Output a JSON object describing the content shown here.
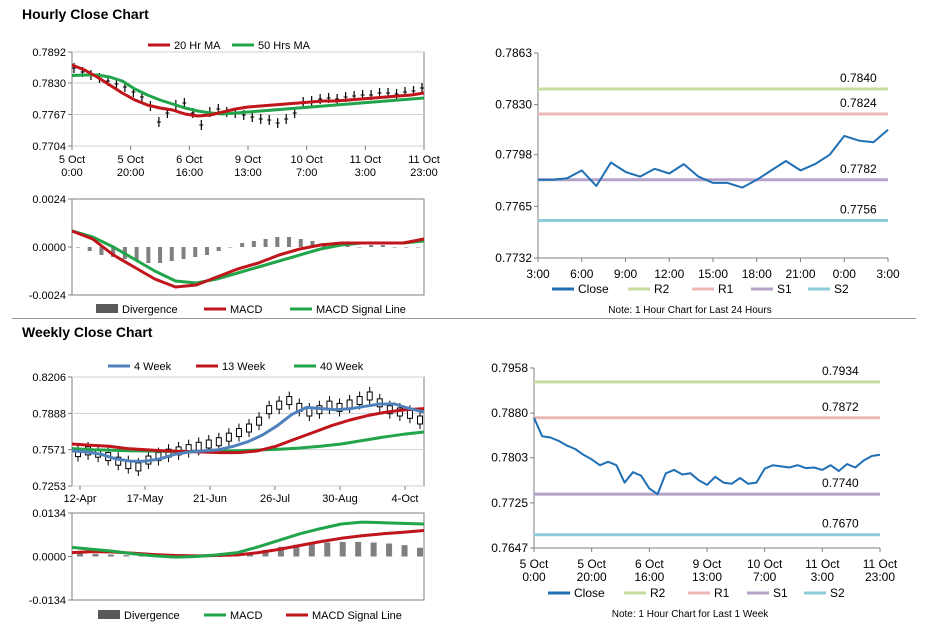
{
  "hourly_title": "Hourly Close Chart",
  "weekly_title": "Weekly Close Chart",
  "colors": {
    "ma20": "#c0151b",
    "ma50": "#22a44a",
    "price": "#000000",
    "divergence": "#7f7f7f",
    "close": "#1f6fb4",
    "r2": "#c6dca0",
    "r1": "#ebb8b6",
    "s1": "#b4a3c8",
    "s2": "#8ccbd8",
    "wk4": "#4f81bd",
    "wk13": "#c0151b",
    "wk40": "#22a44a"
  },
  "chart_data": [
    {
      "id": "hourly-price",
      "type": "line",
      "legend": [
        "20 Hr MA",
        "50 Hrs MA"
      ],
      "x_tick_labels": [
        "5 Oct\n0:00",
        "5 Oct\n20:00",
        "6 Oct\n16:00",
        "9 Oct\n13:00",
        "10 Oct\n7:00",
        "11 Oct\n3:00",
        "11 Oct\n23:00"
      ],
      "y_tick_labels": [
        "0.7892",
        "0.7830",
        "0.7767",
        "0.7704"
      ],
      "ylim": [
        0.7704,
        0.7892
      ],
      "series": [
        {
          "name": "Price",
          "style": "bars",
          "values": [
            0.786,
            0.7852,
            0.7846,
            0.784,
            0.7834,
            0.7828,
            0.7822,
            0.7812,
            0.7802,
            0.7784,
            0.7752,
            0.777,
            0.7786,
            0.779,
            0.777,
            0.7746,
            0.7772,
            0.7778,
            0.7772,
            0.777,
            0.7766,
            0.7762,
            0.7758,
            0.7756,
            0.775,
            0.7758,
            0.777,
            0.7792,
            0.7794,
            0.7798,
            0.78,
            0.7798,
            0.7802,
            0.7804,
            0.7806,
            0.7806,
            0.781,
            0.781,
            0.7808,
            0.7812,
            0.7814,
            0.782
          ]
        },
        {
          "name": "20 Hr MA",
          "values": [
            0.7866,
            0.7856,
            0.7842,
            0.7826,
            0.781,
            0.7796,
            0.7786,
            0.778,
            0.7776,
            0.7768,
            0.7764,
            0.7766,
            0.7772,
            0.7778,
            0.7782,
            0.7784,
            0.7786,
            0.7788,
            0.779,
            0.7792,
            0.7794,
            0.7794,
            0.7796,
            0.7798,
            0.78,
            0.7802,
            0.7804,
            0.7806,
            0.781
          ]
        },
        {
          "name": "50 Hrs MA",
          "values": [
            0.7845,
            0.7846,
            0.7846,
            0.7842,
            0.7834,
            0.7818,
            0.7806,
            0.7796,
            0.7788,
            0.778,
            0.7774,
            0.777,
            0.7768,
            0.777,
            0.7772,
            0.7774,
            0.7776,
            0.7778,
            0.778,
            0.7782,
            0.7784,
            0.7786,
            0.7788,
            0.779,
            0.7792,
            0.7794,
            0.7796,
            0.7798,
            0.78
          ]
        }
      ]
    },
    {
      "id": "hourly-macd",
      "type": "bar",
      "legend": [
        "Divergence",
        "MACD",
        "MACD Signal Line"
      ],
      "y_tick_labels": [
        "0.0024",
        "0.0000",
        "-0.0024"
      ],
      "ylim": [
        -0.0024,
        0.0024
      ],
      "series": [
        {
          "name": "Divergence",
          "values": [
            0.0,
            -0.0002,
            -0.0004,
            -0.0005,
            -0.0006,
            -0.0007,
            -0.0008,
            -0.0008,
            -0.0007,
            -0.0006,
            -0.0005,
            -0.0004,
            -0.0002,
            0.0,
            0.0002,
            0.0003,
            0.0004,
            0.0005,
            0.0005,
            0.0004,
            0.0003,
            0.0002,
            0.0001,
            0.0001,
            0.0,
            0.0001,
            0.0001,
            0.0,
            0.0,
            0.0
          ]
        },
        {
          "name": "MACD",
          "values": [
            0.0008,
            0.0004,
            -0.0004,
            -0.001,
            -0.0016,
            -0.002,
            -0.0019,
            -0.0015,
            -0.0011,
            -0.0008,
            -0.0004,
            -0.0001,
            0.0001,
            0.0002,
            0.0002,
            0.0002,
            0.0002,
            0.0004
          ]
        },
        {
          "name": "MACD Signal Line",
          "values": [
            0.0008,
            0.0005,
            0.0,
            -0.0006,
            -0.0012,
            -0.0017,
            -0.0018,
            -0.0016,
            -0.0013,
            -0.001,
            -0.0007,
            -0.0004,
            -0.0001,
            0.0001,
            0.0002,
            0.0002,
            0.0002,
            0.0003
          ]
        }
      ]
    },
    {
      "id": "hourly-levels",
      "type": "line",
      "legend": [
        "Close",
        "R2",
        "R1",
        "S1",
        "S2"
      ],
      "x_tick_labels": [
        "3:00",
        "6:00",
        "9:00",
        "12:00",
        "15:00",
        "18:00",
        "21:00",
        "0:00",
        "3:00"
      ],
      "y_tick_labels": [
        "0.7863",
        "0.7830",
        "0.7798",
        "0.7765",
        "0.7732"
      ],
      "ylim": [
        0.7732,
        0.7863
      ],
      "series": [
        {
          "name": "Close",
          "values": [
            0.7782,
            0.7782,
            0.7783,
            0.7788,
            0.7778,
            0.7793,
            0.7787,
            0.7784,
            0.7789,
            0.7786,
            0.7792,
            0.7784,
            0.778,
            0.778,
            0.7777,
            0.7782,
            0.7788,
            0.7794,
            0.7788,
            0.7792,
            0.7798,
            0.781,
            0.7807,
            0.7806,
            0.7814
          ]
        },
        {
          "name": "R2",
          "level": 0.784,
          "label": "0.7840"
        },
        {
          "name": "R1",
          "level": 0.7824,
          "label": "0.7824"
        },
        {
          "name": "S1",
          "level": 0.7782,
          "label": "0.7782"
        },
        {
          "name": "S2",
          "level": 0.7756,
          "label": "0.7756"
        }
      ],
      "note": "Note: 1 Hour Chart for Last 24 Hours"
    },
    {
      "id": "weekly-price",
      "type": "line",
      "legend": [
        "4 Week",
        "13 Week",
        "40 Week"
      ],
      "x_tick_labels": [
        "12-Apr",
        "17-May",
        "21-Jun",
        "26-Jul",
        "30-Aug",
        "4-Oct"
      ],
      "y_tick_labels": [
        "0.8206",
        "0.7888",
        "0.7571",
        "0.7253"
      ],
      "ylim": [
        0.7253,
        0.8206
      ],
      "series": [
        {
          "name": "Price",
          "style": "candles",
          "values": [
            0.7545,
            0.756,
            0.754,
            0.751,
            0.747,
            0.744,
            0.742,
            0.748,
            0.751,
            0.754,
            0.756,
            0.758,
            0.76,
            0.762,
            0.764,
            0.768,
            0.772,
            0.776,
            0.782,
            0.792,
            0.796,
            0.8,
            0.794,
            0.79,
            0.792,
            0.796,
            0.794,
            0.797,
            0.8,
            0.804,
            0.798,
            0.792,
            0.79,
            0.788,
            0.783
          ]
        },
        {
          "name": "4 Week",
          "values": [
            0.756,
            0.755,
            0.753,
            0.749,
            0.747,
            0.747,
            0.749,
            0.753,
            0.755,
            0.756,
            0.757,
            0.76,
            0.764,
            0.77,
            0.778,
            0.788,
            0.794,
            0.793,
            0.792,
            0.793,
            0.795,
            0.797,
            0.797,
            0.793,
            0.79
          ]
        },
        {
          "name": "13 Week",
          "values": [
            0.762,
            0.761,
            0.76,
            0.758,
            0.757,
            0.756,
            0.7555,
            0.755,
            0.7545,
            0.7545,
            0.756,
            0.76,
            0.766,
            0.772,
            0.778,
            0.783,
            0.787,
            0.79,
            0.792,
            0.793
          ]
        },
        {
          "name": "40 Week",
          "values": [
            0.758,
            0.757,
            0.7565,
            0.756,
            0.7558,
            0.7555,
            0.7555,
            0.7558,
            0.7562,
            0.7568,
            0.7575,
            0.7585,
            0.76,
            0.762,
            0.765,
            0.768,
            0.7705,
            0.7725
          ]
        }
      ]
    },
    {
      "id": "weekly-macd",
      "type": "bar",
      "legend": [
        "Divergence",
        "MACD",
        "MACD Signal Line"
      ],
      "y_tick_labels": [
        "0.0134",
        "0.0000",
        "-0.0134"
      ],
      "ylim": [
        -0.0134,
        0.0134
      ],
      "series": [
        {
          "name": "Divergence",
          "values": [
            0.001,
            0.0008,
            0.0006,
            0.0004,
            0.0001,
            -0.0003,
            -0.0006,
            -0.0005,
            -0.0003,
            -0.0001,
            0.0002,
            0.001,
            0.002,
            0.003,
            0.0036,
            0.004,
            0.0043,
            0.0045,
            0.0045,
            0.0043,
            0.004,
            0.0035,
            0.0027
          ]
        },
        {
          "name": "MACD",
          "values": [
            0.0028,
            0.0022,
            0.0016,
            0.0008,
            0.0002,
            -0.0002,
            0.0,
            0.0005,
            0.0012,
            0.003,
            0.005,
            0.007,
            0.0086,
            0.01,
            0.0106,
            0.0104,
            0.0102,
            0.01
          ]
        },
        {
          "name": "MACD Signal Line",
          "values": [
            0.0012,
            0.0015,
            0.0014,
            0.001,
            0.0006,
            0.0003,
            0.0002,
            0.0003,
            0.0005,
            0.0012,
            0.0022,
            0.0034,
            0.0046,
            0.0056,
            0.0064,
            0.007,
            0.0075,
            0.008
          ]
        }
      ]
    },
    {
      "id": "weekly-levels",
      "type": "line",
      "legend": [
        "Close",
        "R2",
        "R1",
        "S1",
        "S2"
      ],
      "x_tick_labels": [
        "5 Oct\n0:00",
        "5 Oct\n20:00",
        "6 Oct\n16:00",
        "9 Oct\n13:00",
        "10 Oct\n7:00",
        "11 Oct\n3:00",
        "11 Oct\n23:00"
      ],
      "y_tick_labels": [
        "0.7958",
        "0.7880",
        "0.7803",
        "0.7725",
        "0.7647"
      ],
      "ylim": [
        0.7647,
        0.7958
      ],
      "series": [
        {
          "name": "Close",
          "values": [
            0.7872,
            0.784,
            0.7838,
            0.7832,
            0.7824,
            0.7818,
            0.7808,
            0.78,
            0.779,
            0.7796,
            0.779,
            0.776,
            0.7778,
            0.7772,
            0.775,
            0.774,
            0.7776,
            0.7782,
            0.7774,
            0.7776,
            0.7764,
            0.7756,
            0.777,
            0.776,
            0.7758,
            0.7768,
            0.7758,
            0.776,
            0.7784,
            0.779,
            0.7788,
            0.7786,
            0.779,
            0.7785,
            0.7786,
            0.7782,
            0.779,
            0.778,
            0.7792,
            0.7786,
            0.7798,
            0.7806,
            0.7808
          ]
        },
        {
          "name": "R2",
          "level": 0.7934,
          "label": "0.7934"
        },
        {
          "name": "R1",
          "level": 0.7872,
          "label": "0.7872"
        },
        {
          "name": "S1",
          "level": 0.774,
          "label": "0.7740"
        },
        {
          "name": "S2",
          "level": 0.767,
          "label": "0.7670"
        }
      ],
      "note": "Note: 1 Hour Chart for Last 1 Week"
    }
  ]
}
